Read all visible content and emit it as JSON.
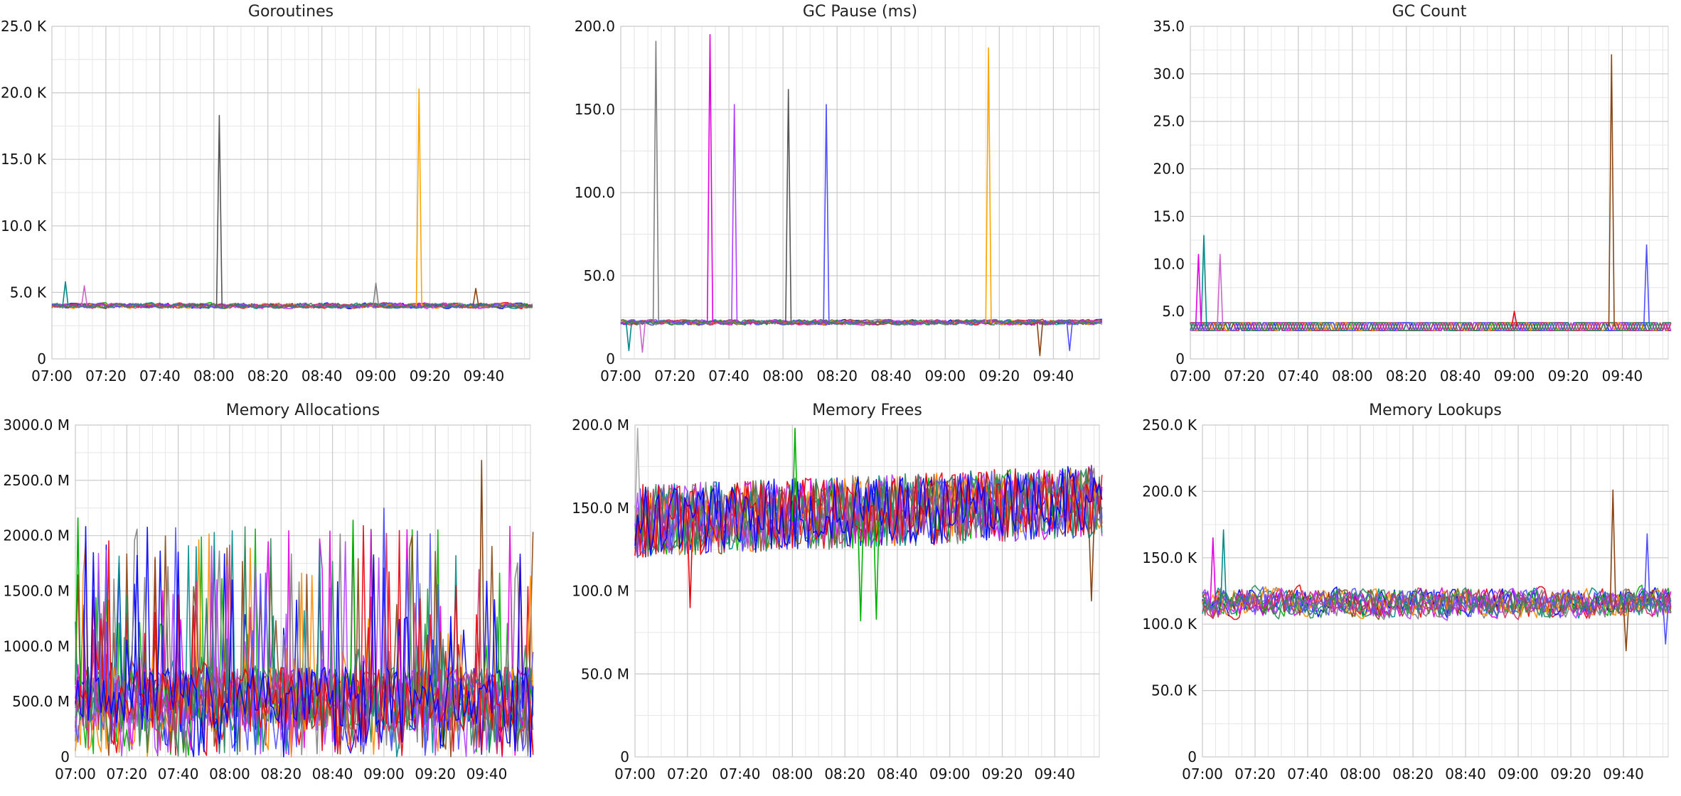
{
  "palette": [
    "#e8000b",
    "#0000ff",
    "#00b000",
    "#e000e0",
    "#8b4513",
    "#008b8b",
    "#808080",
    "#ff8c00",
    "#b040ff",
    "#5050ff",
    "#cc3366",
    "#2e8b57"
  ],
  "chart_data": [
    {
      "type": "line",
      "title": "Goroutines",
      "x_ticks": [
        "07:00",
        "07:20",
        "07:40",
        "08:00",
        "08:20",
        "08:40",
        "09:00",
        "09:20",
        "09:40"
      ],
      "x_range": [
        "07:00",
        "09:57"
      ],
      "ylim": [
        0,
        25000
      ],
      "y_ticks": [
        0,
        5000,
        10000,
        15000,
        20000,
        25000
      ],
      "y_tick_labels": [
        "0",
        "5.0 K",
        "10.0 K",
        "15.0 K",
        "20.0 K",
        "25.0 K"
      ],
      "grid": true,
      "baseline": {
        "series_count": 12,
        "center": 4000,
        "noise": 250
      },
      "spikes": [
        {
          "color": "#555555",
          "time": "08:02",
          "value": 18300
        },
        {
          "color": "#ffa500",
          "time": "09:16",
          "value": 20300
        },
        {
          "color": "#008b8b",
          "time": "07:05",
          "value": 5800
        },
        {
          "color": "#cc66cc",
          "time": "07:12",
          "value": 5500
        },
        {
          "color": "#808080",
          "time": "09:00",
          "value": 5700
        },
        {
          "color": "#8b4513",
          "time": "09:37",
          "value": 5300
        }
      ]
    },
    {
      "type": "line",
      "title": "GC Pause (ms)",
      "x_ticks": [
        "07:00",
        "07:20",
        "07:40",
        "08:00",
        "08:20",
        "08:40",
        "09:00",
        "09:20",
        "09:40"
      ],
      "x_range": [
        "07:00",
        "09:57"
      ],
      "ylim": [
        0,
        200
      ],
      "y_ticks": [
        0,
        50,
        100,
        150,
        200
      ],
      "y_tick_labels": [
        "0",
        "50.0",
        "100.0",
        "150.0",
        "200.0"
      ],
      "grid": true,
      "baseline": {
        "series_count": 12,
        "center": 22,
        "noise": 2
      },
      "spikes": [
        {
          "color": "#808080",
          "time": "07:13",
          "value": 191
        },
        {
          "color": "#e000e0",
          "time": "07:33",
          "value": 195
        },
        {
          "color": "#b040ff",
          "time": "07:42",
          "value": 153
        },
        {
          "color": "#555555",
          "time": "08:02",
          "value": 162
        },
        {
          "color": "#5050ff",
          "time": "08:16",
          "value": 153
        },
        {
          "color": "#ffa500",
          "time": "09:16",
          "value": 187
        }
      ],
      "dips": [
        {
          "color": "#8b4513",
          "time": "09:35",
          "value": 2
        },
        {
          "color": "#5050ff",
          "time": "09:46",
          "value": 5
        },
        {
          "color": "#008b8b",
          "time": "07:03",
          "value": 5
        },
        {
          "color": "#cc66cc",
          "time": "07:08",
          "value": 4
        }
      ]
    },
    {
      "type": "line",
      "title": "GC Count",
      "x_ticks": [
        "07:00",
        "07:20",
        "07:40",
        "08:00",
        "08:20",
        "08:40",
        "09:00",
        "09:20",
        "09:40"
      ],
      "x_range": [
        "07:00",
        "09:57"
      ],
      "ylim": [
        0,
        35
      ],
      "y_ticks": [
        0,
        5,
        10,
        15,
        20,
        25,
        30,
        35
      ],
      "y_tick_labels": [
        "0",
        "5.0",
        "10.0",
        "15.0",
        "20.0",
        "25.0",
        "30.0",
        "35.0"
      ],
      "grid": true,
      "baseline": {
        "series_count": 12,
        "center": 3.4,
        "noise": 0.6
      },
      "spikes": [
        {
          "color": "#8b4513",
          "time": "09:36",
          "value": 32
        },
        {
          "color": "#5050ff",
          "time": "09:49",
          "value": 12
        },
        {
          "color": "#008b8b",
          "time": "07:05",
          "value": 13
        },
        {
          "color": "#e000e0",
          "time": "07:03",
          "value": 11
        },
        {
          "color": "#cc66cc",
          "time": "07:11",
          "value": 11
        },
        {
          "color": "#e8000b",
          "time": "09:00",
          "value": 5
        }
      ]
    },
    {
      "type": "line",
      "title": "Memory Allocations",
      "x_ticks": [
        "07:00",
        "07:20",
        "07:40",
        "08:00",
        "08:20",
        "08:40",
        "09:00",
        "09:20",
        "09:40"
      ],
      "x_range": [
        "07:00",
        "09:57"
      ],
      "ylim": [
        0,
        3000000000
      ],
      "y_ticks": [
        0,
        500000000,
        1000000000,
        1500000000,
        2000000000,
        2500000000,
        3000000000
      ],
      "y_tick_labels": [
        "0",
        "500.0 M",
        "1000.0 M",
        "1500.0 M",
        "2000.0 M",
        "2500.0 M",
        "3000.0 M"
      ],
      "grid": true,
      "baseline": {
        "series_count": 14,
        "center": 650000000,
        "noise": 900000000
      },
      "spikes": [
        {
          "color": "#8b4513",
          "time": "09:38",
          "value": 2680000000
        },
        {
          "color": "#00b000",
          "time": "07:01",
          "value": 2160000000
        },
        {
          "color": "#5050ff",
          "time": "09:00",
          "value": 2250000000
        },
        {
          "color": "#00b000",
          "time": "08:48",
          "value": 2140000000
        }
      ]
    },
    {
      "type": "line",
      "title": "Memory Frees",
      "x_ticks": [
        "07:00",
        "07:20",
        "07:40",
        "08:00",
        "08:20",
        "08:40",
        "09:00",
        "09:20",
        "09:40"
      ],
      "x_range": [
        "07:00",
        "09:57"
      ],
      "ylim": [
        0,
        200000000
      ],
      "y_ticks": [
        0,
        50000000,
        100000000,
        150000000,
        200000000
      ],
      "y_tick_labels": [
        "0",
        "50.0 M",
        "100.0 M",
        "150.0 M",
        "200.0 M"
      ],
      "grid": true,
      "baseline": {
        "series_count": 14,
        "center": 142000000,
        "noise": 22000000
      },
      "spikes": [
        {
          "color": "#00b000",
          "time": "08:01",
          "value": 198000000
        },
        {
          "color": "#aaaaaa",
          "time": "07:01",
          "value": 198000000
        }
      ],
      "dips": [
        {
          "color": "#00b000",
          "time": "08:26",
          "value": 82000000
        },
        {
          "color": "#00b000",
          "time": "08:32",
          "value": 83000000
        },
        {
          "color": "#e8000b",
          "time": "07:21",
          "value": 90000000
        },
        {
          "color": "#8b4513",
          "time": "09:54",
          "value": 94000000
        }
      ]
    },
    {
      "type": "line",
      "title": "Memory Lookups",
      "x_ticks": [
        "07:00",
        "07:20",
        "07:40",
        "08:00",
        "08:20",
        "08:40",
        "09:00",
        "09:20",
        "09:40"
      ],
      "x_range": [
        "07:00",
        "09:57"
      ],
      "ylim": [
        0,
        250000
      ],
      "y_ticks": [
        0,
        50000,
        100000,
        150000,
        200000,
        250000
      ],
      "y_tick_labels": [
        "0",
        "50.0 K",
        "100.0 K",
        "150.0 K",
        "200.0 K",
        "250.0 K"
      ],
      "grid": true,
      "baseline": {
        "series_count": 12,
        "center": 116000,
        "noise": 14000
      },
      "spikes": [
        {
          "color": "#8b4513",
          "time": "09:36",
          "value": 201000
        },
        {
          "color": "#5050ff",
          "time": "09:49",
          "value": 168000
        },
        {
          "color": "#008b8b",
          "time": "07:08",
          "value": 171000
        },
        {
          "color": "#e000e0",
          "time": "07:04",
          "value": 165000
        }
      ],
      "dips": [
        {
          "color": "#8b4513",
          "time": "09:41",
          "value": 80000
        },
        {
          "color": "#5050ff",
          "time": "09:56",
          "value": 85000
        }
      ]
    }
  ]
}
